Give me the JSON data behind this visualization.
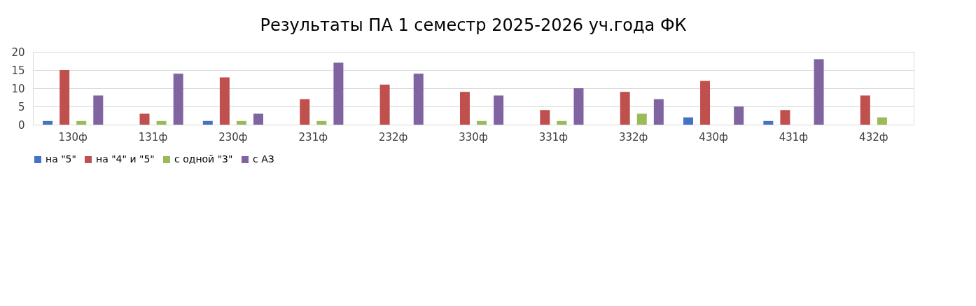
{
  "chart_data": {
    "type": "bar",
    "title": "Результаты ПА 1 семестр 2025-2026 уч.года ФК",
    "categories": [
      "130ф",
      "131ф",
      "230ф",
      "231ф",
      "232ф",
      "330ф",
      "331ф",
      "332ф",
      "430ф",
      "431ф",
      "432ф"
    ],
    "series": [
      {
        "name": "на \"5\"",
        "color": "#4472c4",
        "values": [
          1,
          0,
          1,
          0,
          0,
          0,
          0,
          0,
          2,
          1,
          0
        ]
      },
      {
        "name": "на \"4\" и \"5\"",
        "color": "#c0504d",
        "values": [
          15,
          3,
          13,
          7,
          11,
          9,
          4,
          9,
          12,
          4,
          8
        ]
      },
      {
        "name": "с одной \"3\"",
        "color": "#9bbb59",
        "values": [
          1,
          1,
          1,
          1,
          0,
          1,
          1,
          3,
          0,
          0,
          2
        ]
      },
      {
        "name": "с АЗ",
        "color": "#8064a2",
        "values": [
          8,
          14,
          3,
          17,
          14,
          8,
          10,
          7,
          5,
          18,
          0
        ]
      }
    ],
    "ylim": [
      0,
      20
    ],
    "yticks": [
      0,
      5,
      10,
      15,
      20
    ],
    "grid": "y",
    "legend": "bottom"
  }
}
